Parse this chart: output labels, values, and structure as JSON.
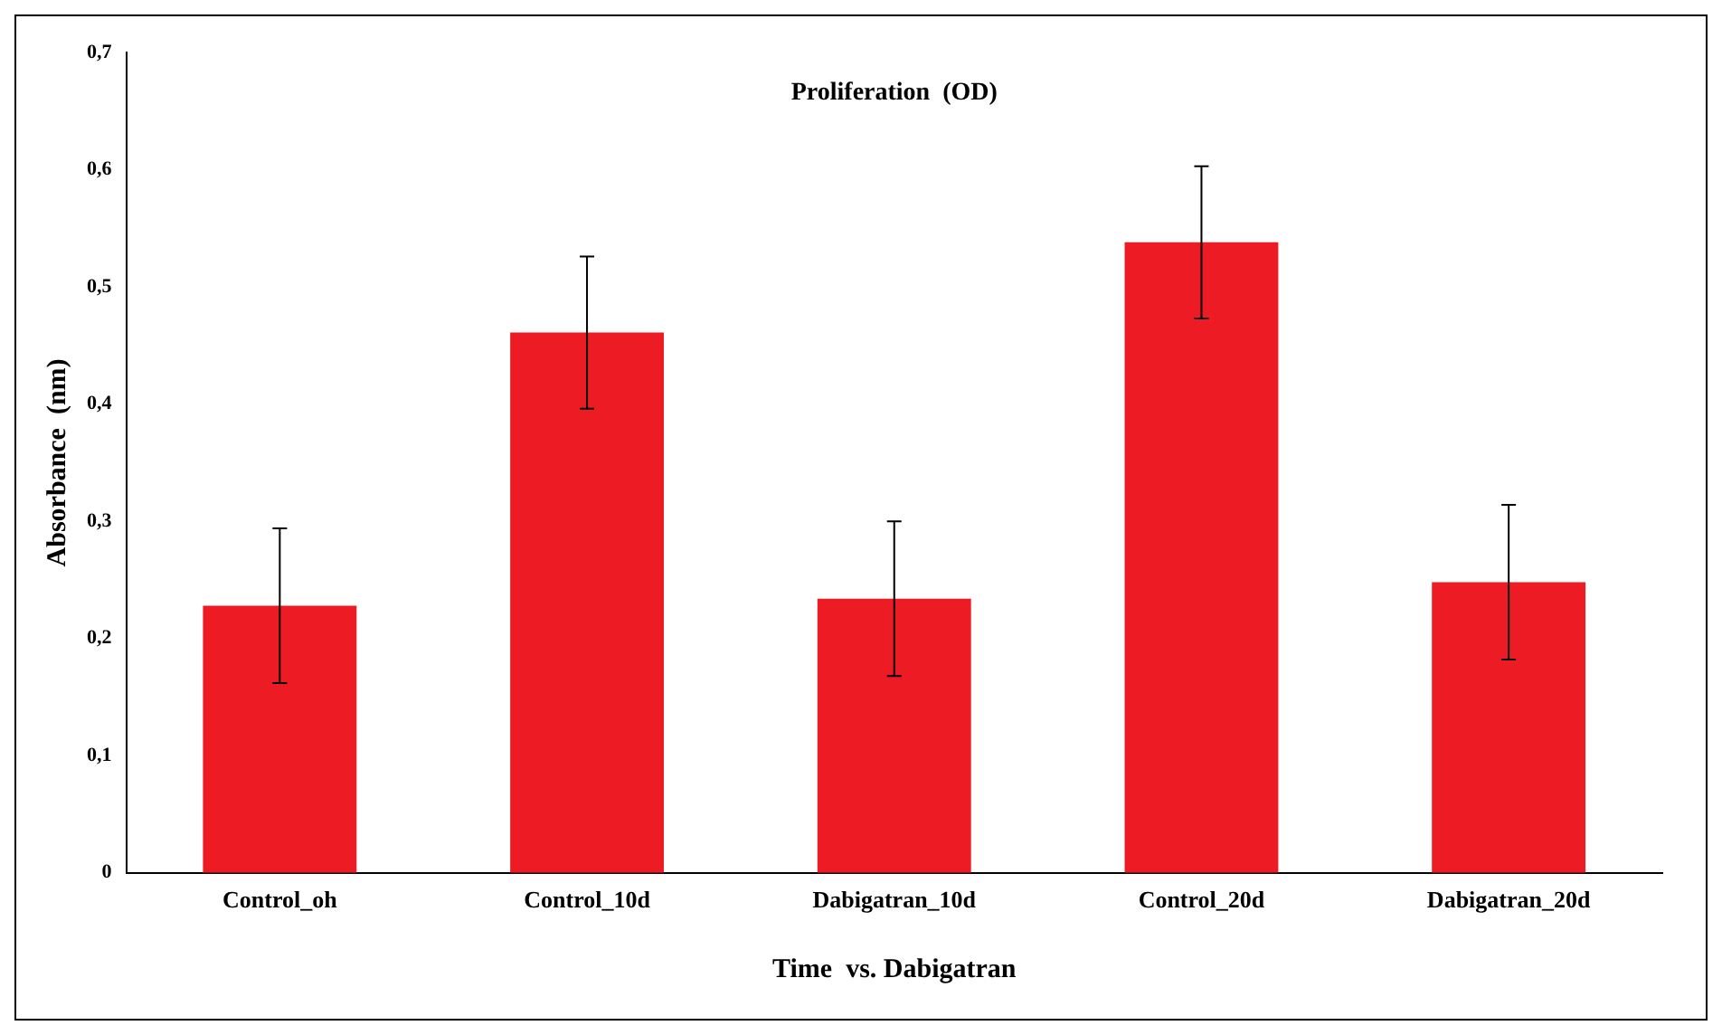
{
  "chart_data": {
    "type": "bar",
    "title": "Proliferation  (OD)",
    "xlabel": "Time  vs. Dabigatran",
    "ylabel": "Absorbance  (nm)",
    "categories": [
      "Control_oh",
      "Control_10d",
      "Dabigatran_10d",
      "Control_20d",
      "Dabigatran_20d"
    ],
    "values": [
      0.228,
      0.461,
      0.234,
      0.538,
      0.248
    ],
    "errors": [
      0.066,
      0.065,
      0.066,
      0.065,
      0.066
    ],
    "color": "#ed1c24",
    "ylim": [
      0,
      0.7
    ],
    "yticks": [
      0,
      {
        "value": 0.1,
        "label": "0,1"
      },
      {
        "value": 0.2,
        "label": "0,2"
      },
      {
        "value": 0.3,
        "label": "0,3"
      },
      {
        "value": 0.4,
        "label": "0,4"
      },
      {
        "value": 0.5,
        "label": "0,5"
      },
      {
        "value": 0.6,
        "label": "0,6"
      },
      {
        "value": 0.7,
        "label": "0,7"
      }
    ],
    "grid": false,
    "legend": false
  }
}
